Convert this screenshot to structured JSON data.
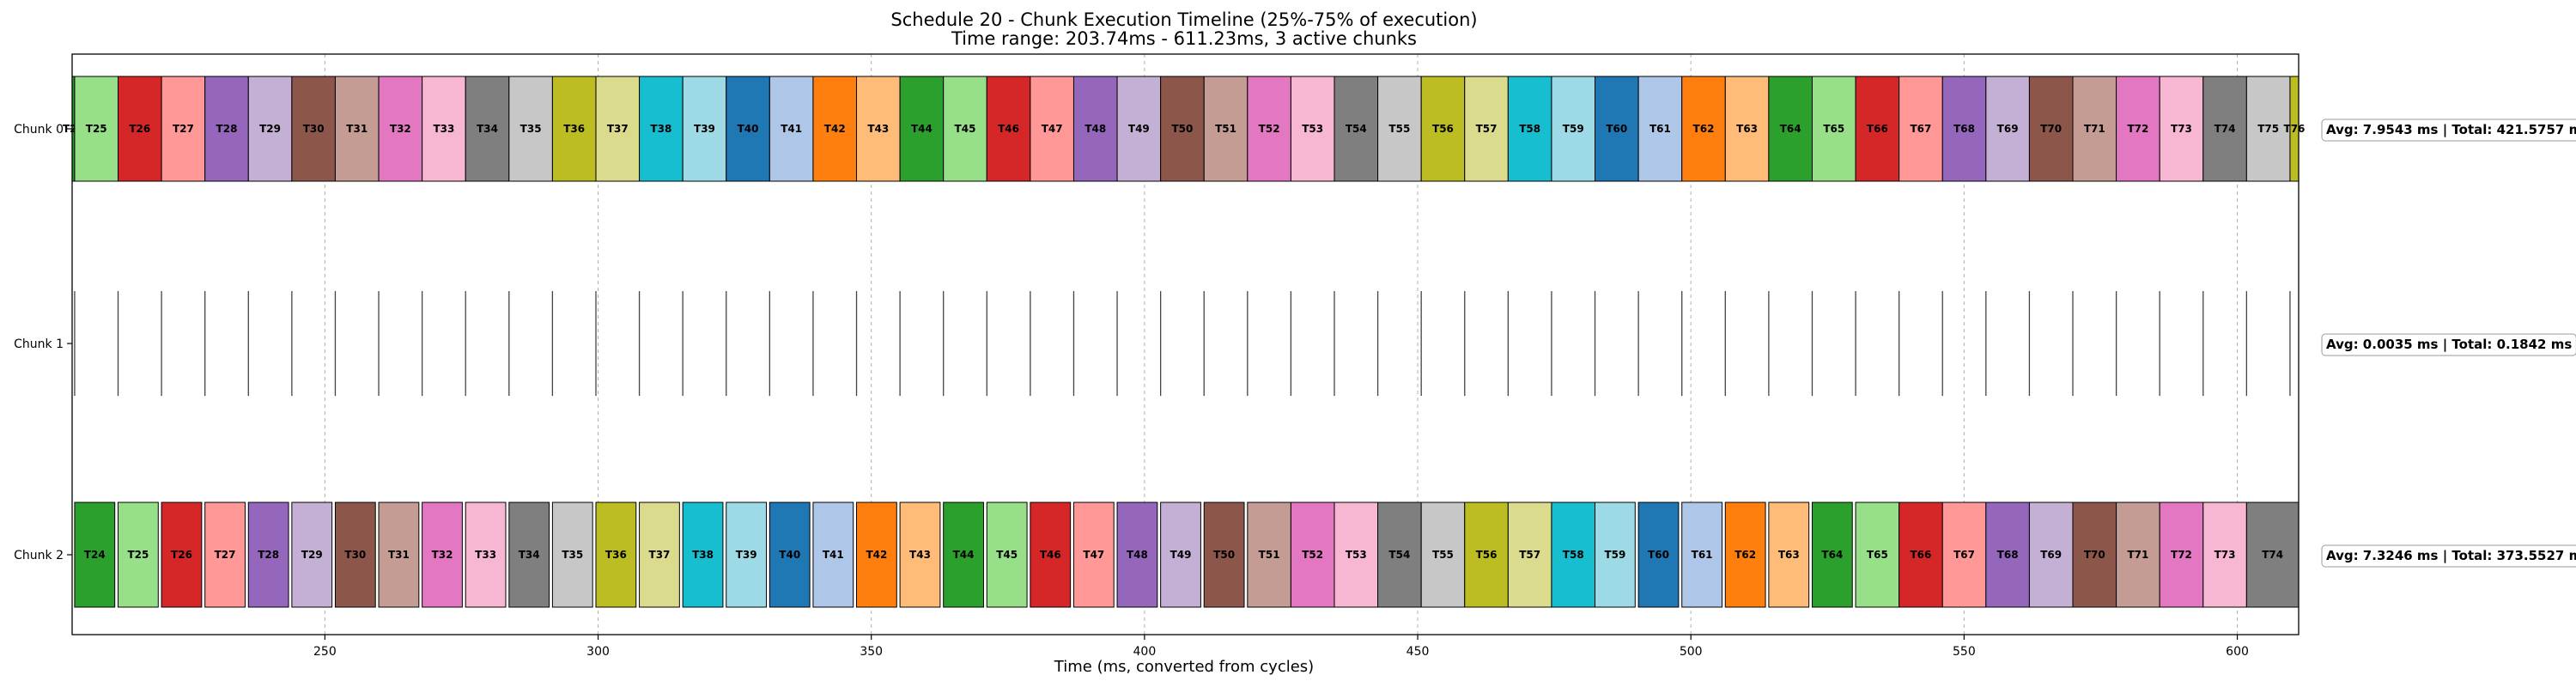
{
  "chart_data": {
    "type": "gantt",
    "title_line1": "Schedule 20 - Chunk Execution Timeline (25%-75% of execution)",
    "title_line2": "Time range: 203.74ms - 611.23ms, 3 active chunks",
    "xlabel": "Time (ms, converted from cycles)",
    "xlim": [
      203.74,
      611.23
    ],
    "xticks": [
      250,
      300,
      350,
      400,
      450,
      500,
      550,
      600
    ],
    "grid": "vertical dashed",
    "categories": [
      "Chunk 0",
      "Chunk 1",
      "Chunk 2"
    ],
    "palette": [
      "#2ca02c",
      "#98df8a",
      "#d62728",
      "#ff9896",
      "#9467bd",
      "#c5b0d5",
      "#8c564b",
      "#c49c94",
      "#e377c2",
      "#f7b6d2",
      "#7f7f7f",
      "#c7c7c7",
      "#bcbd22",
      "#dbdb8d",
      "#17becf",
      "#9edae5",
      "#1f77b4",
      "#aec7e8",
      "#ff7f0e",
      "#ffbb78"
    ],
    "rows": [
      {
        "name": "Chunk 0",
        "annotation": "Avg: 7.9543 ms | Total: 421.5757 ms",
        "tasks": [
          {
            "label": "T24",
            "start": 203.74,
            "end": 204.2,
            "color_index": 0
          },
          {
            "label": "T25",
            "start": 204.2,
            "end": 212.15,
            "color_index": 1
          },
          {
            "label": "T26",
            "start": 212.15,
            "end": 220.1,
            "color_index": 2
          },
          {
            "label": "T27",
            "start": 220.1,
            "end": 228.05,
            "color_index": 3
          },
          {
            "label": "T28",
            "start": 228.05,
            "end": 236.0,
            "color_index": 4
          },
          {
            "label": "T29",
            "start": 236.0,
            "end": 243.95,
            "color_index": 5
          },
          {
            "label": "T30",
            "start": 243.95,
            "end": 251.9,
            "color_index": 6
          },
          {
            "label": "T31",
            "start": 251.9,
            "end": 259.85,
            "color_index": 7
          },
          {
            "label": "T32",
            "start": 259.85,
            "end": 267.8,
            "color_index": 8
          },
          {
            "label": "T33",
            "start": 267.8,
            "end": 275.75,
            "color_index": 9
          },
          {
            "label": "T34",
            "start": 275.75,
            "end": 283.7,
            "color_index": 10
          },
          {
            "label": "T35",
            "start": 283.7,
            "end": 291.65,
            "color_index": 11
          },
          {
            "label": "T36",
            "start": 291.65,
            "end": 299.6,
            "color_index": 12
          },
          {
            "label": "T37",
            "start": 299.6,
            "end": 307.55,
            "color_index": 13
          },
          {
            "label": "T38",
            "start": 307.55,
            "end": 315.5,
            "color_index": 14
          },
          {
            "label": "T39",
            "start": 315.5,
            "end": 323.45,
            "color_index": 15
          },
          {
            "label": "T40",
            "start": 323.45,
            "end": 331.4,
            "color_index": 16
          },
          {
            "label": "T41",
            "start": 331.4,
            "end": 339.35,
            "color_index": 17
          },
          {
            "label": "T42",
            "start": 339.35,
            "end": 347.3,
            "color_index": 18
          },
          {
            "label": "T43",
            "start": 347.3,
            "end": 355.25,
            "color_index": 19
          },
          {
            "label": "T44",
            "start": 355.25,
            "end": 363.2,
            "color_index": 0
          },
          {
            "label": "T45",
            "start": 363.2,
            "end": 371.15,
            "color_index": 1
          },
          {
            "label": "T46",
            "start": 371.15,
            "end": 379.1,
            "color_index": 2
          },
          {
            "label": "T47",
            "start": 379.1,
            "end": 387.05,
            "color_index": 3
          },
          {
            "label": "T48",
            "start": 387.05,
            "end": 395.0,
            "color_index": 4
          },
          {
            "label": "T49",
            "start": 395.0,
            "end": 402.95,
            "color_index": 5
          },
          {
            "label": "T50",
            "start": 402.95,
            "end": 410.9,
            "color_index": 6
          },
          {
            "label": "T51",
            "start": 410.9,
            "end": 418.85,
            "color_index": 7
          },
          {
            "label": "T52",
            "start": 418.85,
            "end": 426.8,
            "color_index": 8
          },
          {
            "label": "T53",
            "start": 426.8,
            "end": 434.75,
            "color_index": 9
          },
          {
            "label": "T54",
            "start": 434.75,
            "end": 442.7,
            "color_index": 10
          },
          {
            "label": "T55",
            "start": 442.7,
            "end": 450.65,
            "color_index": 11
          },
          {
            "label": "T56",
            "start": 450.65,
            "end": 458.6,
            "color_index": 12
          },
          {
            "label": "T57",
            "start": 458.6,
            "end": 466.55,
            "color_index": 13
          },
          {
            "label": "T58",
            "start": 466.55,
            "end": 474.5,
            "color_index": 14
          },
          {
            "label": "T59",
            "start": 474.5,
            "end": 482.45,
            "color_index": 15
          },
          {
            "label": "T60",
            "start": 482.45,
            "end": 490.4,
            "color_index": 16
          },
          {
            "label": "T61",
            "start": 490.4,
            "end": 498.35,
            "color_index": 17
          },
          {
            "label": "T62",
            "start": 498.35,
            "end": 506.3,
            "color_index": 18
          },
          {
            "label": "T63",
            "start": 506.3,
            "end": 514.25,
            "color_index": 19
          },
          {
            "label": "T64",
            "start": 514.25,
            "end": 522.2,
            "color_index": 0
          },
          {
            "label": "T65",
            "start": 522.2,
            "end": 530.15,
            "color_index": 1
          },
          {
            "label": "T66",
            "start": 530.15,
            "end": 538.1,
            "color_index": 2
          },
          {
            "label": "T67",
            "start": 538.1,
            "end": 546.05,
            "color_index": 3
          },
          {
            "label": "T68",
            "start": 546.05,
            "end": 554.0,
            "color_index": 4
          },
          {
            "label": "T69",
            "start": 554.0,
            "end": 561.95,
            "color_index": 5
          },
          {
            "label": "T70",
            "start": 561.95,
            "end": 569.9,
            "color_index": 6
          },
          {
            "label": "T71",
            "start": 569.9,
            "end": 577.85,
            "color_index": 7
          },
          {
            "label": "T72",
            "start": 577.85,
            "end": 585.8,
            "color_index": 8
          },
          {
            "label": "T73",
            "start": 585.8,
            "end": 593.75,
            "color_index": 9
          },
          {
            "label": "T74",
            "start": 593.75,
            "end": 601.7,
            "color_index": 10
          },
          {
            "label": "T75",
            "start": 601.7,
            "end": 609.65,
            "color_index": 11
          },
          {
            "label": "T76",
            "start": 609.65,
            "end": 611.23,
            "color_index": 12
          }
        ]
      },
      {
        "name": "Chunk 1",
        "annotation": "Avg: 0.0035 ms | Total: 0.1842 ms",
        "ticks": [
          204.2,
          212.15,
          220.1,
          228.05,
          236.0,
          243.95,
          251.9,
          259.85,
          267.8,
          275.75,
          283.7,
          291.65,
          299.6,
          307.55,
          315.5,
          323.45,
          331.4,
          339.35,
          347.3,
          355.25,
          363.2,
          371.15,
          379.1,
          387.05,
          395.0,
          402.95,
          410.9,
          418.85,
          426.8,
          434.75,
          442.7,
          450.65,
          458.6,
          466.55,
          474.5,
          482.45,
          490.4,
          498.35,
          506.3,
          514.25,
          522.2,
          530.15,
          538.1,
          546.05,
          554.0,
          561.95,
          569.9,
          577.85,
          585.8,
          593.75,
          601.7,
          609.65
        ]
      },
      {
        "name": "Chunk 2",
        "annotation": "Avg: 7.3246 ms | Total: 373.5527 ms",
        "tasks": [
          {
            "label": "T24",
            "start": 204.2,
            "end": 211.55,
            "color_index": 0
          },
          {
            "label": "T25",
            "start": 212.15,
            "end": 219.5,
            "color_index": 1
          },
          {
            "label": "T26",
            "start": 220.1,
            "end": 227.45,
            "color_index": 2
          },
          {
            "label": "T27",
            "start": 228.05,
            "end": 235.4,
            "color_index": 3
          },
          {
            "label": "T28",
            "start": 236.0,
            "end": 243.35,
            "color_index": 4
          },
          {
            "label": "T29",
            "start": 243.95,
            "end": 251.3,
            "color_index": 5
          },
          {
            "label": "T30",
            "start": 251.9,
            "end": 259.25,
            "color_index": 6
          },
          {
            "label": "T31",
            "start": 259.85,
            "end": 267.2,
            "color_index": 7
          },
          {
            "label": "T32",
            "start": 267.8,
            "end": 275.15,
            "color_index": 8
          },
          {
            "label": "T33",
            "start": 275.75,
            "end": 283.1,
            "color_index": 9
          },
          {
            "label": "T34",
            "start": 283.7,
            "end": 291.05,
            "color_index": 10
          },
          {
            "label": "T35",
            "start": 291.65,
            "end": 299.0,
            "color_index": 11
          },
          {
            "label": "T36",
            "start": 299.6,
            "end": 306.95,
            "color_index": 12
          },
          {
            "label": "T37",
            "start": 307.55,
            "end": 314.9,
            "color_index": 13
          },
          {
            "label": "T38",
            "start": 315.5,
            "end": 322.85,
            "color_index": 14
          },
          {
            "label": "T39",
            "start": 323.45,
            "end": 330.8,
            "color_index": 15
          },
          {
            "label": "T40",
            "start": 331.4,
            "end": 338.75,
            "color_index": 16
          },
          {
            "label": "T41",
            "start": 339.35,
            "end": 346.7,
            "color_index": 17
          },
          {
            "label": "T42",
            "start": 347.3,
            "end": 354.65,
            "color_index": 18
          },
          {
            "label": "T43",
            "start": 355.25,
            "end": 362.6,
            "color_index": 19
          },
          {
            "label": "T44",
            "start": 363.2,
            "end": 370.55,
            "color_index": 0
          },
          {
            "label": "T45",
            "start": 371.15,
            "end": 378.5,
            "color_index": 1
          },
          {
            "label": "T46",
            "start": 379.1,
            "end": 386.45,
            "color_index": 2
          },
          {
            "label": "T47",
            "start": 387.05,
            "end": 394.4,
            "color_index": 3
          },
          {
            "label": "T48",
            "start": 395.0,
            "end": 402.35,
            "color_index": 4
          },
          {
            "label": "T49",
            "start": 402.95,
            "end": 410.3,
            "color_index": 5
          },
          {
            "label": "T50",
            "start": 410.9,
            "end": 418.25,
            "color_index": 6
          },
          {
            "label": "T51",
            "start": 418.85,
            "end": 426.8,
            "color_index": 7
          },
          {
            "label": "T52",
            "start": 426.8,
            "end": 434.75,
            "color_index": 8
          },
          {
            "label": "T53",
            "start": 434.75,
            "end": 442.7,
            "color_index": 9
          },
          {
            "label": "T54",
            "start": 442.7,
            "end": 450.65,
            "color_index": 10
          },
          {
            "label": "T55",
            "start": 450.65,
            "end": 458.6,
            "color_index": 11
          },
          {
            "label": "T56",
            "start": 458.6,
            "end": 466.55,
            "color_index": 12
          },
          {
            "label": "T57",
            "start": 466.55,
            "end": 474.5,
            "color_index": 13
          },
          {
            "label": "T58",
            "start": 474.5,
            "end": 482.45,
            "color_index": 14
          },
          {
            "label": "T59",
            "start": 482.45,
            "end": 489.8,
            "color_index": 15
          },
          {
            "label": "T60",
            "start": 490.4,
            "end": 497.75,
            "color_index": 16
          },
          {
            "label": "T61",
            "start": 498.35,
            "end": 505.7,
            "color_index": 17
          },
          {
            "label": "T62",
            "start": 506.3,
            "end": 513.65,
            "color_index": 18
          },
          {
            "label": "T63",
            "start": 514.25,
            "end": 521.6,
            "color_index": 19
          },
          {
            "label": "T64",
            "start": 522.2,
            "end": 529.55,
            "color_index": 0
          },
          {
            "label": "T65",
            "start": 530.15,
            "end": 538.1,
            "color_index": 1
          },
          {
            "label": "T66",
            "start": 538.1,
            "end": 546.05,
            "color_index": 2
          },
          {
            "label": "T67",
            "start": 546.05,
            "end": 554.0,
            "color_index": 3
          },
          {
            "label": "T68",
            "start": 554.0,
            "end": 561.95,
            "color_index": 4
          },
          {
            "label": "T69",
            "start": 561.95,
            "end": 569.9,
            "color_index": 5
          },
          {
            "label": "T70",
            "start": 569.9,
            "end": 577.85,
            "color_index": 6
          },
          {
            "label": "T71",
            "start": 577.85,
            "end": 585.8,
            "color_index": 7
          },
          {
            "label": "T72",
            "start": 585.8,
            "end": 593.75,
            "color_index": 8
          },
          {
            "label": "T73",
            "start": 593.75,
            "end": 601.7,
            "color_index": 9
          },
          {
            "label": "T74",
            "start": 601.7,
            "end": 611.23,
            "color_index": 10
          }
        ]
      }
    ]
  }
}
